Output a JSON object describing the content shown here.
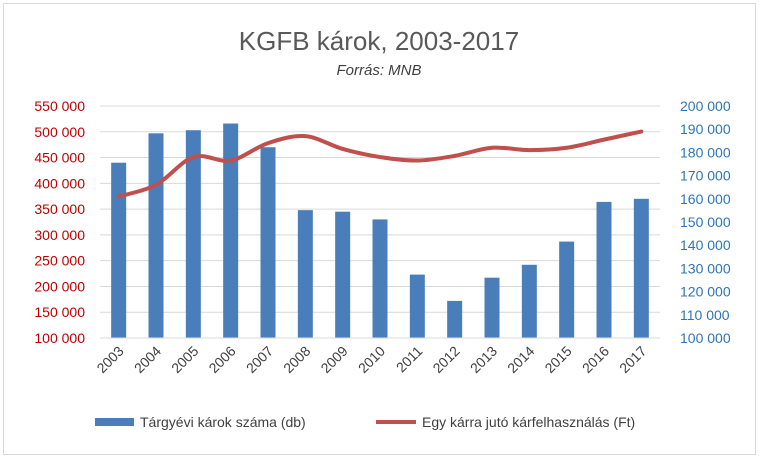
{
  "chart_data": {
    "type": "bar",
    "title": "KGFB károk, 2003-2017",
    "subtitle": "Forrás:  MNB",
    "categories": [
      "2003",
      "2004",
      "2005",
      "2006",
      "2007",
      "2008",
      "2009",
      "2010",
      "2011",
      "2012",
      "2013",
      "2014",
      "2015",
      "2016",
      "2017"
    ],
    "series": [
      {
        "name": "Tárgyévi károk száma (db)",
        "type": "bar",
        "axis": "left",
        "color": "#4a7ebb",
        "values": [
          440000,
          497000,
          503000,
          516000,
          470000,
          348000,
          345000,
          330000,
          223000,
          172000,
          217000,
          242000,
          287000,
          364000,
          370000
        ]
      },
      {
        "name": "Egy kárra jutó kárfelhasználás (Ft)",
        "type": "line",
        "axis": "right",
        "color": "#c0504d",
        "values": [
          161000,
          166000,
          178000,
          176500,
          184000,
          187000,
          181500,
          178000,
          176500,
          178500,
          182000,
          181000,
          182000,
          185500,
          189000
        ]
      }
    ],
    "y_left": {
      "min": 100000,
      "max": 550000,
      "step": 50000,
      "ticks": [
        "100 000",
        "150 000",
        "200 000",
        "250 000",
        "300 000",
        "350 000",
        "400 000",
        "450 000",
        "500 000",
        "550 000"
      ],
      "color": "#c00000"
    },
    "y_right": {
      "min": 100000,
      "max": 200000,
      "step": 10000,
      "ticks": [
        "100 000",
        "110 000",
        "120 000",
        "130 000",
        "140 000",
        "150 000",
        "160 000",
        "170 000",
        "180 000",
        "190 000",
        "200 000"
      ],
      "color": "#2e75b6"
    },
    "grid": true,
    "legend": "bottom"
  }
}
